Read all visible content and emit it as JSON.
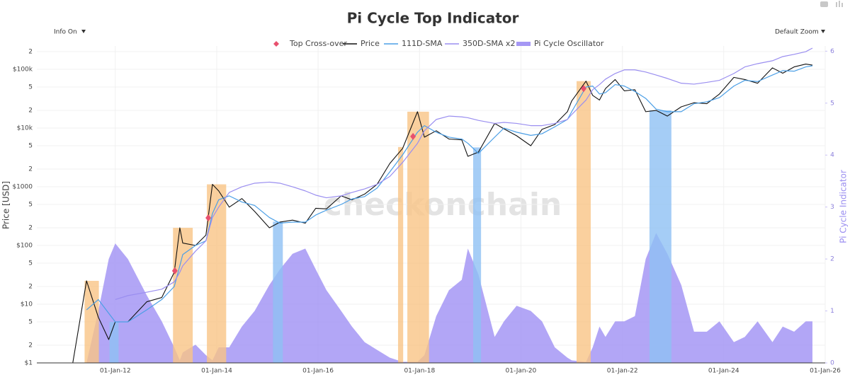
{
  "chart_data": {
    "type": "line",
    "title": "Pi Cycle Top Indicator",
    "menus": [
      {
        "label": "Info On"
      },
      {
        "label": "Default Zoom"
      }
    ],
    "watermark": "checkonchain",
    "ylabel": "Price [USD]",
    "y2label": "Pi Cycle Indicator",
    "ylog": true,
    "grid": true,
    "legend": "top",
    "xlim": [
      "2010-06-15",
      "2026-01-01"
    ],
    "xticks": [
      {
        "value": "2012-01-01",
        "label": "01-Jan-12"
      },
      {
        "value": "2014-01-01",
        "label": "01-Jan-14"
      },
      {
        "value": "2016-01-01",
        "label": "01-Jan-16"
      },
      {
        "value": "2018-01-01",
        "label": "01-Jan-18"
      },
      {
        "value": "2020-01-01",
        "label": "01-Jan-20"
      },
      {
        "value": "2022-01-01",
        "label": "01-Jan-22"
      },
      {
        "value": "2024-01-01",
        "label": "01-Jan-24"
      },
      {
        "value": "2026-01-01",
        "label": "01-Jan-26"
      }
    ],
    "ylim": [
      1,
      250000
    ],
    "yticks": [
      {
        "value": 1,
        "label": "$1"
      },
      2,
      5,
      {
        "value": 10,
        "label": "$10"
      },
      {
        "value": 20,
        "label": "2"
      },
      {
        "value": 50,
        "label": "5"
      },
      {
        "value": 100,
        "label": "$100"
      },
      {
        "value": 200,
        "label": "2"
      },
      {
        "value": 500,
        "label": "5"
      },
      {
        "value": 1000,
        "label": "$1000"
      },
      {
        "value": 2000,
        "label": "2"
      },
      {
        "value": 5000,
        "label": "5"
      },
      {
        "value": 10000,
        "label": "$10k"
      },
      {
        "value": 20000,
        "label": "2"
      },
      {
        "value": 50000,
        "label": "5"
      },
      {
        "value": 100000,
        "label": "$100k"
      },
      {
        "value": 200000,
        "label": "2"
      }
    ],
    "y2lim": [
      0,
      6.1
    ],
    "y2ticks": [
      0,
      1,
      2,
      3,
      4,
      5,
      6
    ],
    "x": [
      "2011-03-01",
      "2011-06-08",
      "2011-09-01",
      "2011-11-15",
      "2012-01-01",
      "2012-04-01",
      "2012-08-15",
      "2012-12-01",
      "2013-03-01",
      "2013-04-10",
      "2013-05-01",
      "2013-08-01",
      "2013-10-15",
      "2013-12-01",
      "2014-01-15",
      "2014-04-01",
      "2014-07-01",
      "2014-10-01",
      "2015-01-15",
      "2015-04-01",
      "2015-07-01",
      "2015-10-01",
      "2015-12-15",
      "2016-03-01",
      "2016-06-15",
      "2016-09-01",
      "2016-12-01",
      "2017-03-01",
      "2017-06-01",
      "2017-09-01",
      "2017-12-17",
      "2018-02-05",
      "2018-05-01",
      "2018-08-01",
      "2018-11-01",
      "2018-12-15",
      "2019-03-01",
      "2019-06-26",
      "2019-09-01",
      "2019-12-01",
      "2020-03-12",
      "2020-06-01",
      "2020-09-01",
      "2020-12-01",
      "2021-01-01",
      "2021-04-14",
      "2021-06-01",
      "2021-07-20",
      "2021-09-01",
      "2021-11-10",
      "2022-01-15",
      "2022-04-01",
      "2022-06-18",
      "2022-09-01",
      "2022-11-21",
      "2023-03-01",
      "2023-06-01",
      "2023-09-01",
      "2023-12-01",
      "2024-03-14",
      "2024-06-01",
      "2024-09-01",
      "2024-12-17",
      "2025-03-01",
      "2025-05-22",
      "2025-08-14",
      "2025-10-01"
    ],
    "series": [
      {
        "name": "Top Cross-over",
        "type": "marker",
        "color": "#e8506e",
        "x": [
          "2013-03-05",
          "2013-11-01",
          "2017-11-15",
          "2021-03-28"
        ],
        "values": [
          37,
          295,
          7200,
          47000
        ]
      },
      {
        "name": "Price",
        "type": "line",
        "color": "#111111",
        "values": [
          1,
          25,
          6,
          2.5,
          5,
          5,
          11,
          13,
          35,
          200,
          110,
          100,
          150,
          1100,
          850,
          450,
          630,
          380,
          200,
          250,
          270,
          240,
          430,
          420,
          700,
          600,
          750,
          1100,
          2500,
          4500,
          19000,
          7000,
          9000,
          6500,
          6300,
          3300,
          3900,
          12000,
          9700,
          7400,
          5000,
          9500,
          11500,
          19000,
          29000,
          63000,
          36000,
          30000,
          47000,
          67000,
          43000,
          45000,
          19000,
          20000,
          16000,
          23000,
          27000,
          26000,
          38000,
          73000,
          67000,
          58000,
          106000,
          86000,
          110000,
          123000,
          118000
        ]
      },
      {
        "name": "111D-SMA",
        "type": "line",
        "color": "#4b9fe6",
        "values": [
          null,
          8,
          12,
          7,
          5,
          5,
          8,
          12,
          20,
          45,
          70,
          100,
          120,
          350,
          600,
          700,
          550,
          480,
          300,
          240,
          250,
          250,
          330,
          400,
          500,
          620,
          680,
          950,
          1800,
          3500,
          8500,
          11000,
          8500,
          7000,
          6500,
          5500,
          3700,
          7000,
          10000,
          8500,
          7500,
          8000,
          10500,
          14000,
          19000,
          50000,
          52000,
          38000,
          40000,
          55000,
          52000,
          42000,
          32000,
          21000,
          19000,
          19000,
          26000,
          28000,
          33000,
          52000,
          65000,
          62000,
          80000,
          95000,
          93000,
          110000,
          115000
        ]
      },
      {
        "name": "350D-SMA x2",
        "type": "line",
        "color": "#9a8ef0",
        "values": [
          null,
          null,
          null,
          null,
          12,
          14,
          16,
          18,
          24,
          35,
          45,
          80,
          120,
          300,
          450,
          800,
          1000,
          1150,
          1200,
          1150,
          1000,
          850,
          720,
          650,
          700,
          800,
          920,
          1100,
          1500,
          2600,
          5500,
          9000,
          14000,
          16000,
          15500,
          15000,
          13500,
          12000,
          12500,
          12000,
          11000,
          11000,
          12000,
          14000,
          17000,
          30000,
          45000,
          55000,
          68000,
          85000,
          98000,
          98000,
          90000,
          80000,
          70000,
          58000,
          56000,
          60000,
          65000,
          85000,
          110000,
          125000,
          140000,
          165000,
          180000,
          200000,
          230000
        ]
      },
      {
        "name": "Pi Cycle Oscillator",
        "type": "area",
        "axis": "y2",
        "color": "#a597f4",
        "values": [
          0,
          0,
          1.0,
          2.0,
          2.3,
          2.0,
          1.3,
          0.8,
          0.3,
          0.05,
          0.2,
          0.35,
          0.15,
          0.05,
          0.3,
          0.3,
          0.7,
          1.0,
          1.5,
          1.8,
          2.1,
          2.2,
          1.8,
          1.4,
          1.0,
          0.7,
          0.4,
          0.25,
          0.1,
          0.02,
          0.02,
          0.15,
          0.9,
          1.4,
          1.6,
          2.2,
          1.7,
          0.5,
          0.8,
          1.1,
          1.0,
          0.8,
          0.3,
          0.1,
          0.05,
          0.02,
          0.3,
          0.7,
          0.5,
          0.8,
          0.8,
          0.9,
          2.0,
          2.5,
          2.1,
          1.5,
          0.6,
          0.6,
          0.8,
          0.4,
          0.5,
          0.8,
          0.4,
          0.7,
          0.6,
          0.8,
          0.8
        ]
      }
    ],
    "top_zones": {
      "color": "#f9c486",
      "ranges": [
        [
          "2011-05-25",
          "2011-09-05"
        ],
        [
          "2013-02-20",
          "2013-07-12"
        ],
        [
          "2013-10-22",
          "2014-03-10"
        ],
        [
          "2017-07-30",
          "2017-09-05"
        ],
        [
          "2017-10-05",
          "2018-03-10"
        ],
        [
          "2021-02-05",
          "2021-05-18"
        ]
      ]
    },
    "bottom_zones": {
      "color": "#8fc1f4",
      "ranges": [
        [
          "2011-11-20",
          "2012-01-25"
        ],
        [
          "2015-02-10",
          "2015-04-22"
        ],
        [
          "2019-01-22",
          "2019-03-20"
        ],
        [
          "2022-07-15",
          "2022-12-20"
        ]
      ]
    }
  }
}
